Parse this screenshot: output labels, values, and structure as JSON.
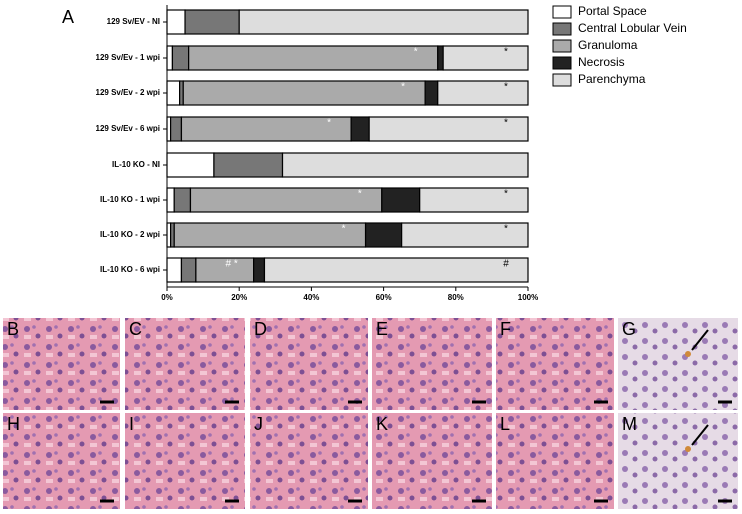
{
  "chart_data": {
    "type": "stacked-barh",
    "panel_label": "A",
    "categories": [
      "129 Sv/EV - NI",
      "129 Sv/Ev - 1 wpi",
      "129 Sv/Ev - 2 wpi",
      "129 Sv/Ev - 6 wpi",
      "IL-10 KO - NI",
      "IL-10 KO - 1 wpi",
      "IL-10 KO - 2 wpi",
      "IL-10 KO - 6 wpi"
    ],
    "series": [
      {
        "name": "Portal Space",
        "color": "#ffffff",
        "values": [
          5,
          1.5,
          3.5,
          1,
          13,
          2,
          1,
          4
        ]
      },
      {
        "name": "Central Lobular Vein",
        "color": "#777777",
        "values": [
          15,
          4.5,
          1,
          3,
          19,
          4.5,
          1,
          4
        ]
      },
      {
        "name": "Granuloma",
        "color": "#aaaaaa",
        "values": [
          0,
          69,
          67,
          47,
          0,
          53,
          53,
          16
        ]
      },
      {
        "name": "Necrosis",
        "color": "#222222",
        "values": [
          0,
          1.5,
          3.5,
          5,
          0,
          10.5,
          10,
          3
        ]
      },
      {
        "name": "Parenchyma",
        "color": "#dddddd",
        "values": [
          80,
          23.5,
          25,
          44,
          68,
          30,
          35,
          73
        ]
      }
    ],
    "annotations": [
      {
        "text": "*",
        "category": 1,
        "series": 2
      },
      {
        "text": "*",
        "category": 1,
        "series": 4
      },
      {
        "text": "*",
        "category": 2,
        "series": 2
      },
      {
        "text": "*",
        "category": 2,
        "series": 4
      },
      {
        "text": "*",
        "category": 3,
        "series": 2
      },
      {
        "text": "*",
        "category": 3,
        "series": 4
      },
      {
        "text": "*",
        "category": 5,
        "series": 2
      },
      {
        "text": "*",
        "category": 5,
        "series": 4
      },
      {
        "text": "*",
        "category": 6,
        "series": 2
      },
      {
        "text": "*",
        "category": 6,
        "series": 4
      },
      {
        "text": "# *",
        "category": 7,
        "series": 2
      },
      {
        "text": "#",
        "category": 7,
        "series": 4
      }
    ],
    "xlim": [
      0,
      100
    ],
    "xticks": [
      {
        "value": 0,
        "label": "0%"
      },
      {
        "value": 20,
        "label": "20%"
      },
      {
        "value": 40,
        "label": "40%"
      },
      {
        "value": 60,
        "label": "60%"
      },
      {
        "value": 80,
        "label": "80%"
      },
      {
        "value": 100,
        "label": "100%"
      }
    ]
  },
  "panels": [
    "B",
    "C",
    "D",
    "E",
    "F",
    "G",
    "H",
    "I",
    "J",
    "K",
    "L",
    "M"
  ]
}
